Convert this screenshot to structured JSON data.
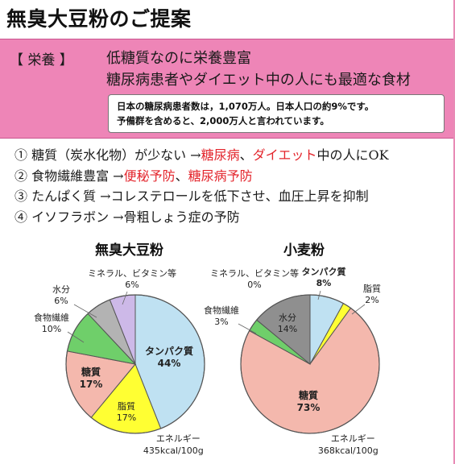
{
  "title": "無臭大豆粉のご提案",
  "nutrition": {
    "tag": "【 栄養 】",
    "line1": "低糖質なのに栄養豊富",
    "line2": "糖尿病患者やダイエット中の人にも最適な食材"
  },
  "note": {
    "line1": "日本の糖尿病患者数は，1,070万人。日本人口の約9%です。",
    "line2": "予備群を含めると、2,000万人と言われています。"
  },
  "benefits": [
    {
      "num": "①",
      "parts": [
        {
          "text": "糖質（炭水化物）が少ない →",
          "hl": false
        },
        {
          "text": "糖尿病",
          "hl": true
        },
        {
          "text": "、",
          "hl": false
        },
        {
          "text": "ダイエット",
          "hl": true
        },
        {
          "text": "中の人にOK",
          "hl": false
        }
      ]
    },
    {
      "num": "②",
      "parts": [
        {
          "text": "食物繊維豊富 →",
          "hl": false
        },
        {
          "text": "便秘予防",
          "hl": true
        },
        {
          "text": "、",
          "hl": false
        },
        {
          "text": "糖尿病予防",
          "hl": true
        }
      ]
    },
    {
      "num": "③",
      "parts": [
        {
          "text": "たんぱく質 →コレステロールを低下させ、血圧上昇を抑制",
          "hl": false
        }
      ]
    },
    {
      "num": "④",
      "parts": [
        {
          "text": "イソフラボン →骨粗しょう症の予防",
          "hl": false
        }
      ]
    }
  ],
  "chart_data": [
    {
      "type": "pie",
      "title": "無臭大豆粉",
      "categories": [
        "タンパク質",
        "脂質",
        "糖質",
        "食物繊維",
        "水分",
        "ミネラル、ビタミン等"
      ],
      "values": [
        44,
        17,
        17,
        10,
        6,
        6
      ],
      "unit": "%",
      "colors": [
        "#bfe1f2",
        "#ffff33",
        "#f4b8ad",
        "#6fcf6a",
        "#b3b3b3",
        "#cdb9e8"
      ],
      "energy_label": "エネルギー",
      "energy_value": "435kcal/100g"
    },
    {
      "type": "pie",
      "title": "小麦粉",
      "categories": [
        "タンパク質",
        "脂質",
        "糖質",
        "食物繊維",
        "水分",
        "ミネラル、ビタミン等"
      ],
      "values": [
        8,
        2,
        73,
        3,
        14,
        0
      ],
      "unit": "%",
      "colors": [
        "#bfe1f2",
        "#ffff33",
        "#f4b8ad",
        "#6fcf6a",
        "#8f8f8f",
        "#cdb9e8"
      ],
      "energy_label": "エネルギー",
      "energy_value": "368kcal/100g"
    }
  ]
}
